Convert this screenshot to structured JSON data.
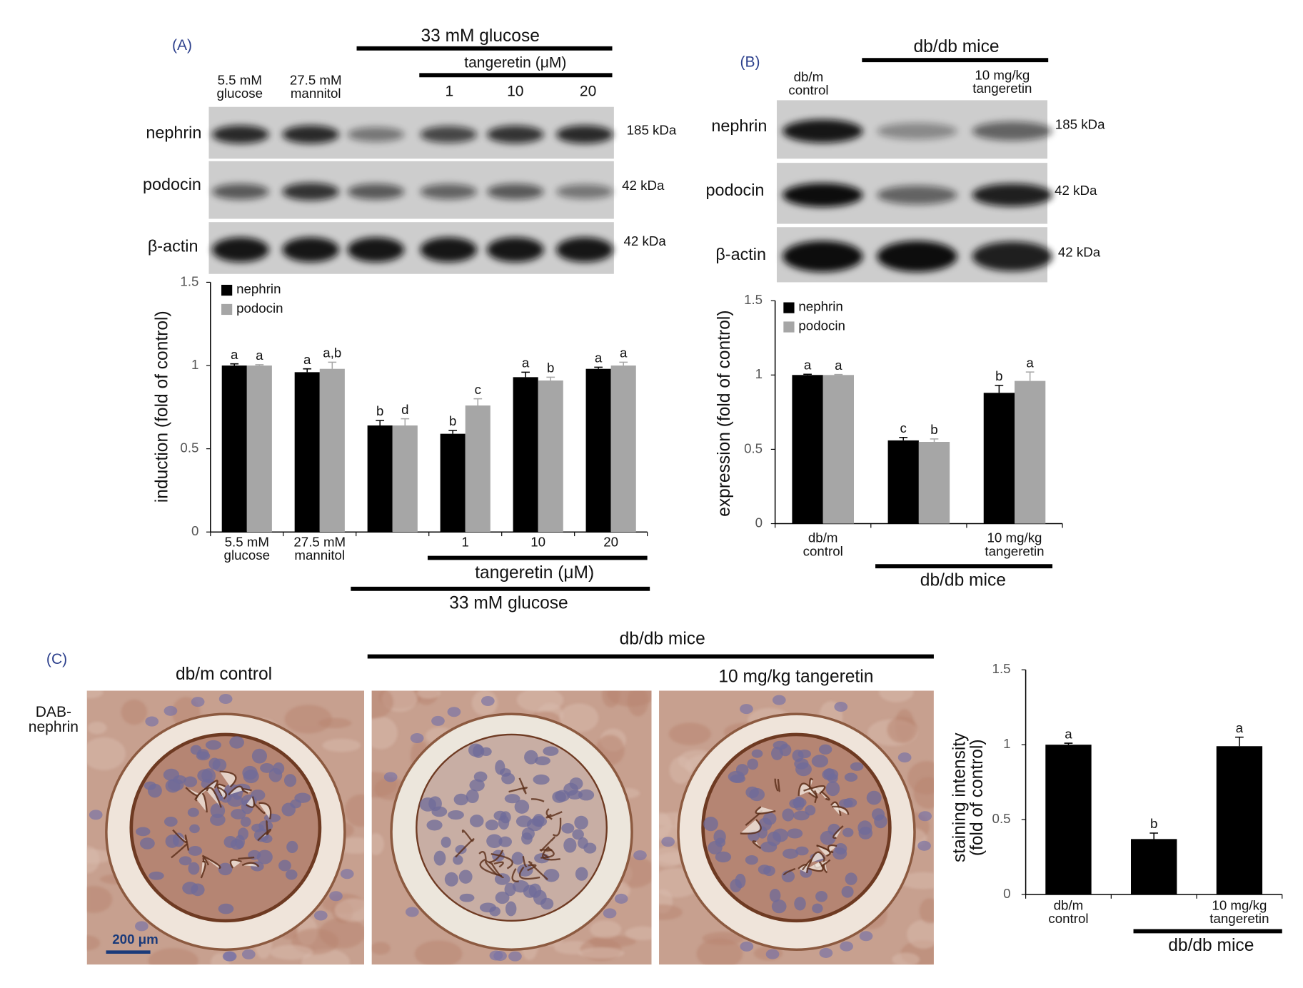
{
  "panel_a": {
    "label": "(A)",
    "header": "33 mM glucose",
    "subheader": "tangeretin (μM)",
    "lanes": [
      "5.5 mM\nglucose",
      "27.5 mM\nmannitol",
      "1",
      "10",
      "20"
    ],
    "rows": [
      "nephrin",
      "podocin",
      "β-actin"
    ],
    "sizes": [
      "185 kDa",
      "42 kDa",
      "42 kDa"
    ]
  },
  "panel_b": {
    "label": "(B)",
    "header": "db/db mice",
    "lanes": [
      "db/m\ncontrol",
      "10 mg/kg\ntangeretin"
    ],
    "rows": [
      "nephrin",
      "podocin",
      "β-actin"
    ],
    "sizes": [
      "185 kDa",
      "42 kDa",
      "42 kDa"
    ]
  },
  "panel_c": {
    "label": "(C)",
    "header": "db/db mice",
    "images": [
      "db/m control",
      "10 mg/kg tangeretin"
    ],
    "stain": "DAB-\nnephrin",
    "scale_bar": "200 μm"
  },
  "chart_data": [
    {
      "type": "bar",
      "ylabel": "induction (fold of control)",
      "categories": [
        "5.5 mM\nglucose",
        "27.5 mM\nmannitol",
        null,
        "1",
        "10",
        "20"
      ],
      "group_labels": [
        "tangeretin (μM)",
        "33 mM glucose"
      ],
      "series": [
        {
          "name": "nephrin",
          "color": "#000000",
          "values": [
            1.0,
            0.96,
            0.64,
            0.59,
            0.93,
            0.98
          ],
          "errors": [
            0.01,
            0.02,
            0.03,
            0.02,
            0.03,
            0.01
          ],
          "letters": [
            "a",
            "a",
            "b",
            "b",
            "a",
            "a"
          ]
        },
        {
          "name": "podocin",
          "color": "#a6a6a6",
          "values": [
            1.0,
            0.98,
            0.64,
            0.76,
            0.91,
            1.0
          ],
          "errors": [
            0.005,
            0.04,
            0.04,
            0.04,
            0.02,
            0.02
          ],
          "letters": [
            "a",
            "a,b",
            "d",
            "c",
            "b",
            "a"
          ]
        }
      ],
      "ylim": [
        0,
        1.5
      ],
      "yticks": [
        0,
        0.5,
        1,
        1.5
      ],
      "legend": "top-left"
    },
    {
      "type": "bar",
      "ylabel": "expression (fold of control)",
      "categories": [
        "db/m\ncontrol",
        null,
        "10 mg/kg\ntangeretin"
      ],
      "group_labels": [
        "db/db mice"
      ],
      "series": [
        {
          "name": "nephrin",
          "color": "#000000",
          "values": [
            1.0,
            0.56,
            0.88
          ],
          "errors": [
            0.005,
            0.02,
            0.05
          ],
          "letters": [
            "a",
            "c",
            "b"
          ]
        },
        {
          "name": "podocin",
          "color": "#a6a6a6",
          "values": [
            1.0,
            0.55,
            0.96
          ],
          "errors": [
            0.003,
            0.02,
            0.06
          ],
          "letters": [
            "a",
            "b",
            "a"
          ]
        }
      ],
      "ylim": [
        0,
        1.5
      ],
      "yticks": [
        0,
        0.5,
        1,
        1.5
      ],
      "legend": "top-left"
    },
    {
      "type": "bar",
      "ylabel": "staining intensity\n(fold of control)",
      "categories": [
        "db/m\ncontrol",
        null,
        "10 mg/kg\ntangeretin"
      ],
      "group_labels": [
        "db/db mice"
      ],
      "series": [
        {
          "color": "#000000",
          "values": [
            1.0,
            0.37,
            0.99
          ],
          "errors": [
            0.01,
            0.04,
            0.06
          ],
          "letters": [
            "a",
            "b",
            "a"
          ]
        }
      ],
      "ylim": [
        0,
        1.5
      ],
      "yticks": [
        0,
        0.5,
        1,
        1.5
      ]
    }
  ]
}
